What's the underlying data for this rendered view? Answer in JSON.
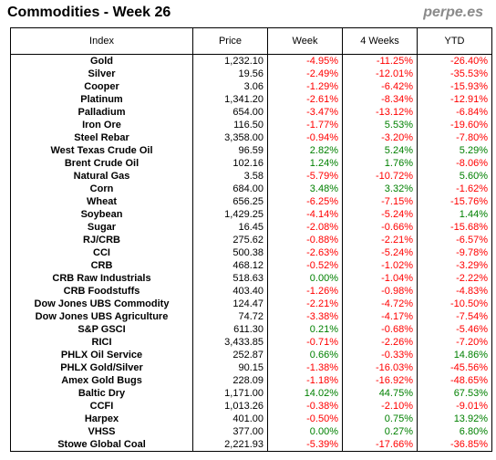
{
  "header": {
    "title": "Commodities - Week 26",
    "brand": "perpe.es"
  },
  "colors": {
    "negative": "#ff0000",
    "positive": "#008000"
  },
  "table": {
    "columns": [
      "Index",
      "Price",
      "Week",
      "4 Weeks",
      "YTD"
    ],
    "rows": [
      [
        "Gold",
        "1,232.10",
        "-4.95%",
        "-11.25%",
        "-26.40%"
      ],
      [
        "Silver",
        "19.56",
        "-2.49%",
        "-12.01%",
        "-35.53%"
      ],
      [
        "Cooper",
        "3.06",
        "-1.29%",
        "-6.42%",
        "-15.93%"
      ],
      [
        "Platinum",
        "1,341.20",
        "-2.61%",
        "-8.34%",
        "-12.91%"
      ],
      [
        "Palladium",
        "654.00",
        "-3.47%",
        "-13.12%",
        "-6.84%"
      ],
      [
        "Iron Ore",
        "116.50",
        "-1.77%",
        "5.53%",
        "-19.60%"
      ],
      [
        "Steel Rebar",
        "3,358.00",
        "-0.94%",
        "-3.20%",
        "-7.80%"
      ],
      [
        "West Texas Crude Oil",
        "96.59",
        "2.82%",
        "5.24%",
        "5.29%"
      ],
      [
        "Brent Crude Oil",
        "102.16",
        "1.24%",
        "1.76%",
        "-8.06%"
      ],
      [
        "Natural Gas",
        "3.58",
        "-5.79%",
        "-10.72%",
        "5.60%"
      ],
      [
        "Corn",
        "684.00",
        "3.48%",
        "3.32%",
        "-1.62%"
      ],
      [
        "Wheat",
        "656.25",
        "-6.25%",
        "-7.15%",
        "-15.76%"
      ],
      [
        "Soybean",
        "1,429.25",
        "-4.14%",
        "-5.24%",
        "1.44%"
      ],
      [
        "Sugar",
        "16.45",
        "-2.08%",
        "-0.66%",
        "-15.68%"
      ],
      [
        "RJ/CRB",
        "275.62",
        "-0.88%",
        "-2.21%",
        "-6.57%"
      ],
      [
        "CCI",
        "500.38",
        "-2.63%",
        "-5.24%",
        "-9.78%"
      ],
      [
        "CRB",
        "468.12",
        "-0.52%",
        "-1.02%",
        "-3.29%"
      ],
      [
        "CRB Raw Industrials",
        "518.63",
        "0.00%",
        "-1.04%",
        "-2.22%"
      ],
      [
        "CRB Foodstuffs",
        "403.40",
        "-1.26%",
        "-0.98%",
        "-4.83%"
      ],
      [
        "Dow Jones UBS Commodity",
        "124.47",
        "-2.21%",
        "-4.72%",
        "-10.50%"
      ],
      [
        "Dow Jones UBS Agriculture",
        "74.72",
        "-3.38%",
        "-4.17%",
        "-7.54%"
      ],
      [
        "S&P GSCI",
        "611.30",
        "0.21%",
        "-0.68%",
        "-5.46%"
      ],
      [
        "RICI",
        "3,433.85",
        "-0.71%",
        "-2.26%",
        "-7.20%"
      ],
      [
        "PHLX Oil Service",
        "252.87",
        "0.66%",
        "-0.33%",
        "14.86%"
      ],
      [
        "PHLX Gold/Silver",
        "90.15",
        "-1.38%",
        "-16.03%",
        "-45.56%"
      ],
      [
        "Amex Gold Bugs",
        "228.09",
        "-1.18%",
        "-16.92%",
        "-48.65%"
      ],
      [
        "Baltic Dry",
        "1,171.00",
        "14.02%",
        "44.75%",
        "67.53%"
      ],
      [
        "CCFI",
        "1,013.26",
        "-0.38%",
        "-2.10%",
        "-9.01%"
      ],
      [
        "Harpex",
        "401.00",
        "-0.50%",
        "0.75%",
        "13.92%"
      ],
      [
        "VHSS",
        "377.00",
        "0.00%",
        "0.27%",
        "6.80%"
      ],
      [
        "Stowe Global Coal",
        "2,221.93",
        "-5.39%",
        "-17.66%",
        "-36.85%"
      ]
    ]
  }
}
